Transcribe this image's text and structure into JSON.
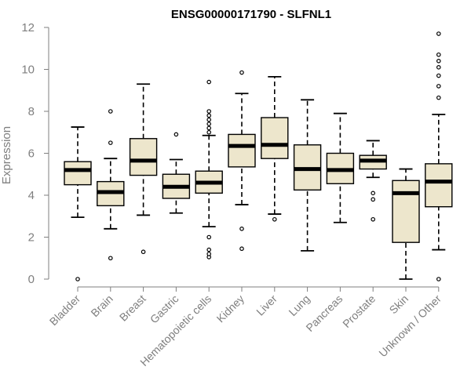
{
  "colors": {
    "box_fill": "#ede6cc",
    "box_stroke": "#000000",
    "median": "#000000",
    "axis": "#7f7f7f",
    "axis_text": "#7f7f7f",
    "title": "#000000"
  },
  "chart_data": {
    "type": "boxplot",
    "title": "ENSG00000171790 - SLFNL1",
    "xlabel": "",
    "ylabel": "Expression",
    "ylim": [
      0,
      12
    ],
    "yticks": [
      0,
      2,
      4,
      6,
      8,
      10,
      12
    ],
    "grid": false,
    "categories": [
      "Bladder",
      "Brain",
      "Breast",
      "Gastric",
      "Hematopoietic cells",
      "Kidney",
      "Liver",
      "Lung",
      "Pancreas",
      "Prostate",
      "Skin",
      "Unknown / Other"
    ],
    "boxes": [
      {
        "category": "Bladder",
        "whisker_low": 2.95,
        "q1": 4.5,
        "median": 5.2,
        "q3": 5.6,
        "whisker_high": 7.25,
        "outliers": [
          0.0
        ]
      },
      {
        "category": "Brain",
        "whisker_low": 2.4,
        "q1": 3.5,
        "median": 4.15,
        "q3": 4.65,
        "whisker_high": 5.75,
        "outliers": [
          1.0,
          6.5,
          8.0
        ]
      },
      {
        "category": "Breast",
        "whisker_low": 3.05,
        "q1": 4.95,
        "median": 5.65,
        "q3": 6.7,
        "whisker_high": 9.3,
        "outliers": [
          1.3
        ]
      },
      {
        "category": "Gastric",
        "whisker_low": 3.15,
        "q1": 3.85,
        "median": 4.4,
        "q3": 5.0,
        "whisker_high": 5.7,
        "outliers": [
          6.9
        ]
      },
      {
        "category": "Hematopoietic cells",
        "whisker_low": 2.5,
        "q1": 4.1,
        "median": 4.6,
        "q3": 5.15,
        "whisker_high": 6.85,
        "outliers": [
          1.05,
          1.2,
          1.4,
          2.0,
          7.0,
          7.2,
          7.4,
          7.6,
          7.8,
          8.0,
          9.4
        ]
      },
      {
        "category": "Kidney",
        "whisker_low": 3.55,
        "q1": 5.35,
        "median": 6.35,
        "q3": 6.9,
        "whisker_high": 8.85,
        "outliers": [
          1.45,
          2.4,
          9.85
        ]
      },
      {
        "category": "Liver",
        "whisker_low": 3.1,
        "q1": 5.75,
        "median": 6.4,
        "q3": 7.7,
        "whisker_high": 9.65,
        "outliers": [
          2.85
        ]
      },
      {
        "category": "Lung",
        "whisker_low": 1.35,
        "q1": 4.25,
        "median": 5.25,
        "q3": 6.4,
        "whisker_high": 8.55,
        "outliers": []
      },
      {
        "category": "Pancreas",
        "whisker_low": 2.7,
        "q1": 4.55,
        "median": 5.2,
        "q3": 6.0,
        "whisker_high": 7.9,
        "outliers": []
      },
      {
        "category": "Prostate",
        "whisker_low": 4.85,
        "q1": 5.25,
        "median": 5.65,
        "q3": 5.9,
        "whisker_high": 6.6,
        "outliers": [
          2.85,
          3.8,
          4.1
        ]
      },
      {
        "category": "Skin",
        "whisker_low": 0.0,
        "q1": 1.75,
        "median": 4.1,
        "q3": 4.7,
        "whisker_high": 5.25,
        "outliers": []
      },
      {
        "category": "Unknown / Other",
        "whisker_low": 1.4,
        "q1": 3.45,
        "median": 4.65,
        "q3": 5.5,
        "whisker_high": 7.85,
        "outliers": [
          0.0,
          8.65,
          9.2,
          9.7,
          10.1,
          10.4,
          10.7,
          11.7
        ]
      }
    ]
  }
}
